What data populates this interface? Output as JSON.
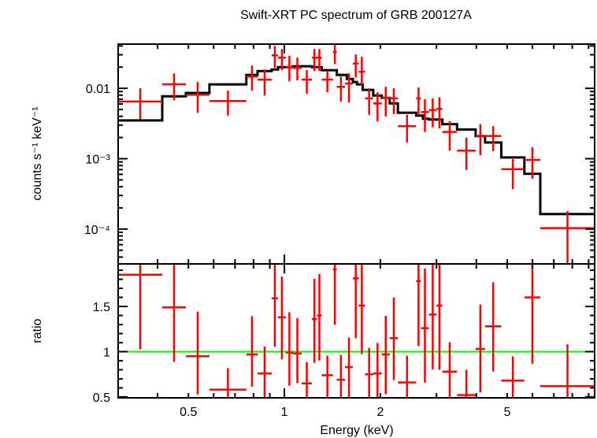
{
  "chart_data": {
    "type": "scatter",
    "title": "Swift-XRT PC spectrum of GRB 200127A",
    "xlabel": "Energy (keV)",
    "x_scale": "log",
    "xlim": [
      0.301,
      9.4
    ],
    "x_tick_labels": [
      "0.5",
      "1",
      "2",
      "5"
    ],
    "x_ticks": [
      0.5,
      1,
      2,
      5
    ],
    "colors": {
      "data": "#ff0000",
      "model": "#000000",
      "unity_line": "#00ff00"
    },
    "panels": [
      {
        "id": "spectrum",
        "ylabel": "counts s⁻¹ keV⁻¹",
        "y_scale": "log",
        "ylim": [
          3.2e-05,
          0.0425
        ],
        "y_tick_labels": [
          "0.01",
          "10⁻³",
          "10⁻⁴"
        ],
        "y_ticks": [
          0.01,
          0.001,
          0.0001
        ]
      },
      {
        "id": "ratio",
        "ylabel": "ratio",
        "y_scale": "linear",
        "ylim": [
          0.49,
          1.97
        ],
        "y_tick_labels": [
          "0.5",
          "1",
          "1.5"
        ],
        "y_ticks": [
          0.5,
          1,
          1.5
        ],
        "reference_line": 1
      }
    ],
    "data_columns": [
      "e_lo",
      "e_hi",
      "counts",
      "counts_lo",
      "counts_hi",
      "ratio"
    ],
    "data": [
      [
        0.301,
        0.414,
        0.0065,
        0.0036,
        0.01,
        1.85
      ],
      [
        0.414,
        0.491,
        0.0114,
        0.0068,
        0.0163,
        1.49
      ],
      [
        0.491,
        0.582,
        0.0081,
        0.0045,
        0.0123,
        0.95
      ],
      [
        0.582,
        0.76,
        0.0066,
        0.0041,
        0.0093,
        0.58
      ],
      [
        0.76,
        0.824,
        0.0147,
        0.0093,
        0.0211,
        0.97
      ],
      [
        0.824,
        0.912,
        0.0133,
        0.0079,
        0.0185,
        0.76
      ],
      [
        0.912,
        0.955,
        0.0294,
        0.0195,
        0.0401,
        1.59
      ],
      [
        0.955,
        1.01,
        0.0273,
        0.0181,
        0.0362,
        1.38
      ],
      [
        1.01,
        1.064,
        0.02,
        0.0126,
        0.029,
        0.99
      ],
      [
        1.064,
        1.133,
        0.0195,
        0.013,
        0.0273,
        0.98
      ],
      [
        1.133,
        1.22,
        0.0133,
        0.0084,
        0.0181,
        0.65
      ],
      [
        1.22,
        1.265,
        0.0273,
        0.0176,
        0.0362,
        1.36
      ],
      [
        1.265,
        1.31,
        0.0273,
        0.0176,
        0.0362,
        1.4
      ],
      [
        1.31,
        1.42,
        0.0133,
        0.0088,
        0.0172,
        0.74
      ],
      [
        1.42,
        1.46,
        0.0327,
        0.0222,
        0.0434,
        1.91
      ],
      [
        1.46,
        1.55,
        0.0105,
        0.0065,
        0.0147,
        0.69
      ],
      [
        1.55,
        1.64,
        0.0117,
        0.0063,
        0.0163,
        0.83
      ],
      [
        1.64,
        1.71,
        0.0225,
        0.0143,
        0.0302,
        1.81
      ],
      [
        1.71,
        1.79,
        0.0172,
        0.0111,
        0.028,
        1.51
      ],
      [
        1.79,
        1.9,
        0.0072,
        0.0042,
        0.01,
        0.75
      ],
      [
        1.9,
        2.02,
        0.0061,
        0.0034,
        0.0088,
        0.76
      ],
      [
        2.02,
        2.14,
        0.0073,
        0.004,
        0.0105,
        0.97
      ],
      [
        2.14,
        2.27,
        0.0072,
        0.0043,
        0.01,
        1.15
      ],
      [
        2.27,
        2.59,
        0.0029,
        0.0017,
        0.0042,
        0.66
      ],
      [
        2.59,
        2.68,
        0.0072,
        0.0043,
        0.0103,
        1.78
      ],
      [
        2.68,
        2.84,
        0.0046,
        0.0024,
        0.007,
        1.26
      ],
      [
        2.84,
        3.0,
        0.0049,
        0.0028,
        0.0072,
        1.41
      ],
      [
        3.0,
        3.13,
        0.0051,
        0.0027,
        0.0075,
        1.51
      ],
      [
        3.13,
        3.48,
        0.0024,
        0.0013,
        0.0034,
        0.78
      ],
      [
        3.48,
        3.98,
        0.0013,
        0.00069,
        0.002,
        0.52
      ],
      [
        3.98,
        4.26,
        0.0021,
        0.00112,
        0.0031,
        1.03
      ],
      [
        4.26,
        4.79,
        0.0021,
        0.00128,
        0.0029,
        1.28
      ],
      [
        4.79,
        5.66,
        0.00071,
        0.00037,
        0.00099,
        0.68
      ],
      [
        5.66,
        6.35,
        0.00096,
        0.00052,
        0.00145,
        1.6
      ],
      [
        6.35,
        9.4,
        0.000103,
        1e-06,
        0.00018,
        0.62
      ]
    ],
    "model_columns": [
      "e_lo",
      "e_hi",
      "counts"
    ],
    "model": [
      [
        0.301,
        0.414,
        0.0035
      ],
      [
        0.414,
        0.491,
        0.0077
      ],
      [
        0.491,
        0.582,
        0.0086
      ],
      [
        0.582,
        0.76,
        0.0114
      ],
      [
        0.76,
        0.824,
        0.0155
      ],
      [
        0.824,
        0.912,
        0.0176
      ],
      [
        0.912,
        0.955,
        0.0185
      ],
      [
        0.955,
        1.064,
        0.02
      ],
      [
        1.064,
        1.22,
        0.0206
      ],
      [
        1.22,
        1.31,
        0.02
      ],
      [
        1.31,
        1.46,
        0.0181
      ],
      [
        1.46,
        1.57,
        0.0155
      ],
      [
        1.57,
        1.64,
        0.0136
      ],
      [
        1.64,
        1.69,
        0.0123
      ],
      [
        1.69,
        1.76,
        0.0114
      ],
      [
        1.76,
        1.9,
        0.0095
      ],
      [
        1.9,
        2.02,
        0.0079
      ],
      [
        2.02,
        2.14,
        0.0073
      ],
      [
        2.14,
        2.27,
        0.0061
      ],
      [
        2.27,
        2.59,
        0.0045
      ],
      [
        2.59,
        2.72,
        0.0041
      ],
      [
        2.72,
        2.84,
        0.0037
      ],
      [
        2.84,
        3.13,
        0.0036
      ],
      [
        3.13,
        3.48,
        0.0031
      ],
      [
        3.48,
        3.98,
        0.0026
      ],
      [
        3.98,
        4.26,
        0.0021
      ],
      [
        4.26,
        4.79,
        0.0017
      ],
      [
        4.79,
        5.66,
        0.00104
      ],
      [
        5.66,
        6.35,
        0.00061
      ],
      [
        6.35,
        9.4,
        0.000163
      ]
    ]
  }
}
